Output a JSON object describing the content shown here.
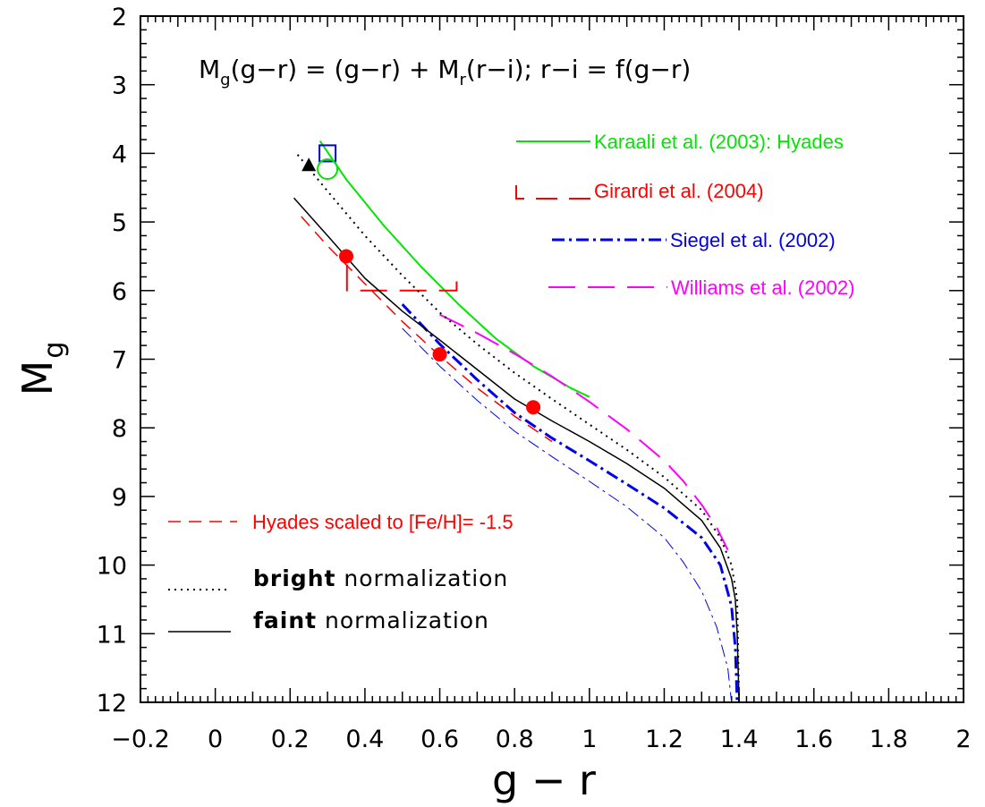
{
  "chart_data": {
    "type": "line",
    "title": "",
    "formula": {
      "parts": [
        {
          "t": "M",
          "sub": false
        },
        {
          "t": "g",
          "sub": true
        },
        {
          "t": "(g−r)  =  (g−r)  +  M",
          "sub": false
        },
        {
          "t": "r",
          "sub": true
        },
        {
          "t": "(r−i);  r−i  =  f(g−r)",
          "sub": false
        }
      ]
    },
    "xlabel": "g − r",
    "ylabel": {
      "main": "M",
      "sub": "g"
    },
    "xlim": [
      -0.2,
      2.0
    ],
    "ylim": [
      12,
      2
    ],
    "y_inverted": true,
    "x_ticks": [
      -0.2,
      0,
      0.2,
      0.4,
      0.6,
      0.8,
      1,
      1.2,
      1.4,
      1.6,
      1.8,
      2
    ],
    "x_tick_labels": [
      "−0.2",
      "0",
      "0.2",
      "0.4",
      "0.6",
      "0.8",
      "1",
      "1.2",
      "1.4",
      "1.6",
      "1.8",
      "2"
    ],
    "y_ticks": [
      2,
      3,
      4,
      5,
      6,
      7,
      8,
      9,
      10,
      11,
      12
    ],
    "y_tick_labels": [
      "2",
      "3",
      "4",
      "5",
      "6",
      "7",
      "8",
      "9",
      "10",
      "11",
      "12"
    ],
    "series": [
      {
        "key": "karaali",
        "name": "Karaali et al. (2003): Hyades",
        "color": "#00e600",
        "style": "solid",
        "width": 2,
        "x": [
          0.28,
          0.35,
          0.45,
          0.55,
          0.65,
          0.75,
          0.85,
          0.95,
          1.0
        ],
        "y": [
          3.82,
          4.38,
          5.05,
          5.65,
          6.2,
          6.7,
          7.1,
          7.42,
          7.55
        ]
      },
      {
        "key": "girardi",
        "name": "Girardi et al. (2004)",
        "color": "#ff0000",
        "style": "longdash",
        "width": 2,
        "x": [
          0.352,
          0.352,
          0.645,
          0.645
        ],
        "y": [
          5.62,
          6.0,
          6.0,
          5.83
        ]
      },
      {
        "key": "siegel",
        "name": "Siegel et al. (2002)",
        "color": "#0000e6",
        "style": "dashdot",
        "width": 3,
        "x": [
          0.5,
          0.6,
          0.7,
          0.8,
          0.9,
          1.0,
          1.1,
          1.2,
          1.3,
          1.35,
          1.38,
          1.39,
          1.395
        ],
        "y": [
          6.2,
          6.78,
          7.3,
          7.78,
          8.15,
          8.48,
          8.82,
          9.17,
          9.6,
          10.0,
          10.6,
          11.2,
          12.0
        ]
      },
      {
        "key": "siegel_thin",
        "name": "",
        "color": "#0000e6",
        "style": "dashdot",
        "width": 1,
        "x": [
          0.5,
          0.6,
          0.7,
          0.8,
          0.9,
          1.0,
          1.1,
          1.2,
          1.25,
          1.3,
          1.34,
          1.37,
          1.38
        ],
        "y": [
          6.55,
          7.1,
          7.6,
          8.05,
          8.42,
          8.78,
          9.15,
          9.6,
          9.95,
          10.38,
          10.9,
          11.5,
          12.0
        ]
      },
      {
        "key": "williams",
        "name": "Williams et al. (2002)",
        "color": "#ff00ff",
        "style": "longdash",
        "width": 2,
        "x": [
          0.6,
          0.7,
          0.8,
          0.9,
          1.0,
          1.1,
          1.2,
          1.25,
          1.3,
          1.34,
          1.37
        ],
        "y": [
          6.35,
          6.62,
          6.92,
          7.25,
          7.62,
          8.02,
          8.48,
          8.77,
          9.12,
          9.45,
          9.78
        ]
      },
      {
        "key": "hyades_scaled",
        "name": "Hyades scaled to [Fe/H]= -1.5",
        "color": "#ff0000",
        "style": "dash",
        "width": 1.5,
        "x": [
          0.23,
          0.3,
          0.4,
          0.5,
          0.6,
          0.7,
          0.8,
          0.9
        ],
        "y": [
          4.92,
          5.35,
          5.9,
          6.45,
          6.95,
          7.42,
          7.83,
          8.2
        ]
      },
      {
        "key": "bright",
        "name": "bright normalization",
        "color": "#000000",
        "style": "dot",
        "width": 2,
        "x": [
          0.22,
          0.3,
          0.4,
          0.5,
          0.6,
          0.7,
          0.8,
          0.9,
          1.0,
          1.1,
          1.2,
          1.3,
          1.35,
          1.38,
          1.395,
          1.4
        ],
        "y": [
          4.02,
          4.55,
          5.2,
          5.78,
          6.32,
          6.78,
          7.2,
          7.58,
          7.95,
          8.32,
          8.72,
          9.2,
          9.6,
          10.0,
          10.5,
          12.0
        ]
      },
      {
        "key": "faint",
        "name": "faint normalization",
        "color": "#000000",
        "style": "solid",
        "width": 1.5,
        "x": [
          0.21,
          0.3,
          0.4,
          0.5,
          0.6,
          0.7,
          0.8,
          0.9,
          1.0,
          1.1,
          1.2,
          1.3,
          1.35,
          1.38,
          1.39,
          1.395,
          1.4
        ],
        "y": [
          4.65,
          5.2,
          5.82,
          6.3,
          6.72,
          7.15,
          7.58,
          7.9,
          8.2,
          8.52,
          8.88,
          9.35,
          9.75,
          10.2,
          10.5,
          11.0,
          12.0
        ]
      }
    ],
    "markers": [
      {
        "shape": "filled-circle",
        "color": "#ff0000",
        "x": 0.35,
        "y": 5.5
      },
      {
        "shape": "filled-circle",
        "color": "#ff0000",
        "x": 0.6,
        "y": 6.93
      },
      {
        "shape": "filled-circle",
        "color": "#ff0000",
        "x": 0.85,
        "y": 7.7
      },
      {
        "shape": "filled-triangle",
        "color": "#000000",
        "x": 0.25,
        "y": 4.18
      },
      {
        "shape": "open-square",
        "color": "#0000e6",
        "x": 0.3,
        "y": 4.0
      },
      {
        "shape": "open-circle",
        "color": "#00e600",
        "x": 0.3,
        "y": 4.23
      }
    ],
    "legend": {
      "placement": "top-right",
      "items": [
        {
          "series": "karaali",
          "label": "Karaali et al. (2003): Hyades",
          "color": "#00e600"
        },
        {
          "series": "girardi",
          "label": "Girardi et al. (2004)",
          "color": "#ff0000"
        },
        {
          "series": "siegel",
          "label": "Siegel et al. (2002)",
          "color": "#0000e6"
        },
        {
          "series": "williams",
          "label": "Williams et al. (2002)",
          "color": "#ff00ff"
        }
      ]
    },
    "lower_legend": {
      "placement": "bottom-left",
      "items": [
        {
          "series": "hyades_scaled",
          "label": "Hyades scaled to [Fe/H]= -1.5",
          "color": "#ff0000"
        },
        {
          "series": "bright",
          "bold": "bright",
          "rest": " normalization",
          "color": "#000000"
        },
        {
          "series": "faint",
          "bold": "faint",
          "rest": " normalization",
          "color": "#000000"
        }
      ]
    },
    "grid": false
  }
}
